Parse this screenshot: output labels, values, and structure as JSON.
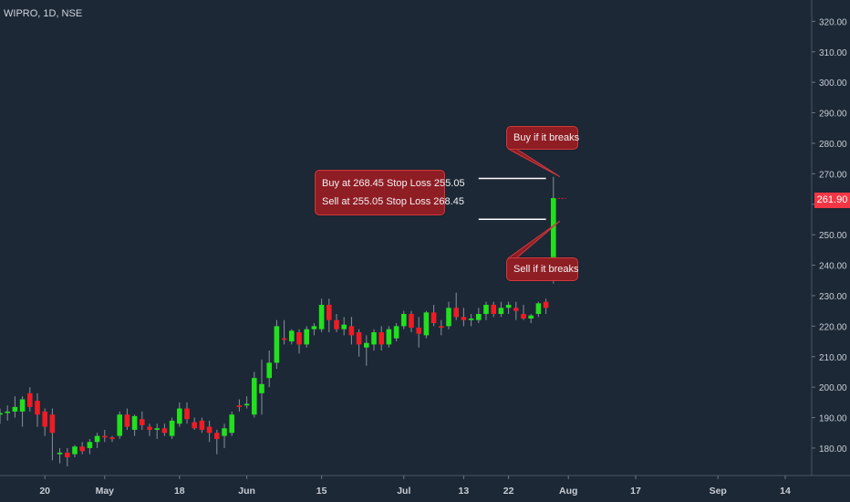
{
  "header": {
    "ticker": "WIPRO, 1D, NSE"
  },
  "annotations": {
    "entry_box": {
      "line1": "Buy at 268.45 Stop Loss 255.05",
      "line2": "Sell at 255.05 Stop Loss 268.45"
    },
    "buy_label": "Buy if it breaks",
    "sell_label": "Sell if it breaks"
  },
  "colors": {
    "up": "#22e01e",
    "down": "#ee1c24",
    "background": "#1c2836",
    "callout": "#8f1d24"
  },
  "chart_data": {
    "type": "candlestick",
    "title": "",
    "xlabel": "",
    "ylabel": "",
    "ylim": [
      171,
      327
    ],
    "price_ticks": [
      "180.00",
      "190.00",
      "200.00",
      "210.00",
      "220.00",
      "230.00",
      "240.00",
      "250.00",
      "260.00",
      "270.00",
      "280.00",
      "290.00",
      "300.00",
      "310.00",
      "320.00"
    ],
    "time_ticks": [
      {
        "label": "20",
        "bar": 6
      },
      {
        "label": "May",
        "bar": 14
      },
      {
        "label": "18",
        "bar": 24
      },
      {
        "label": "Jun",
        "bar": 33
      },
      {
        "label": "15",
        "bar": 43
      },
      {
        "label": "Jul",
        "bar": 54
      },
      {
        "label": "13",
        "bar": 62
      },
      {
        "label": "22",
        "bar": 68
      },
      {
        "label": "Aug",
        "bar": 76
      },
      {
        "label": "17",
        "bar": 85
      },
      {
        "label": "Sep",
        "bar": 96
      },
      {
        "label": "14",
        "bar": 105
      }
    ],
    "last_price": "261.90",
    "levels": [
      {
        "name": "buy-level",
        "price": 268.45,
        "from_bar": 64,
        "to_bar": 73
      },
      {
        "name": "sell-level",
        "price": 255.05,
        "from_bar": 64,
        "to_bar": 73
      }
    ],
    "candles": [
      [
        191,
        193,
        188,
        191.5
      ],
      [
        191.5,
        194,
        189,
        192
      ],
      [
        192,
        197,
        190,
        193.5
      ],
      [
        192,
        197,
        187,
        196
      ],
      [
        198,
        200,
        192,
        193.5
      ],
      [
        195.5,
        198,
        187,
        191
      ],
      [
        192,
        193,
        184,
        187
      ],
      [
        191,
        193,
        176,
        185
      ],
      [
        178,
        180,
        175,
        178.5
      ],
      [
        178.5,
        180,
        174,
        177
      ],
      [
        178,
        181,
        177,
        180.5
      ],
      [
        180.5,
        182,
        178,
        179
      ],
      [
        180,
        183,
        178,
        182
      ],
      [
        182,
        185,
        180,
        184
      ],
      [
        184,
        186,
        182,
        183.5
      ],
      [
        183.5,
        184,
        182,
        183
      ],
      [
        184,
        192,
        183,
        191
      ],
      [
        191,
        193,
        186,
        187
      ],
      [
        186,
        191,
        184,
        190.5
      ],
      [
        189.5,
        192,
        186,
        187.5
      ],
      [
        187,
        188,
        184,
        186
      ],
      [
        186,
        188,
        183,
        186.5
      ],
      [
        186.5,
        188,
        184,
        185
      ],
      [
        184,
        190,
        183,
        189
      ],
      [
        188,
        195,
        187,
        193
      ],
      [
        193,
        195,
        188,
        189.5
      ],
      [
        188.5,
        190,
        186,
        186.5
      ],
      [
        189,
        190,
        185,
        186
      ],
      [
        187,
        189,
        182,
        185
      ],
      [
        185,
        186,
        178,
        183
      ],
      [
        184,
        188,
        180,
        186.5
      ],
      [
        185,
        192,
        184,
        191
      ],
      [
        194,
        196,
        192,
        193.5
      ],
      [
        194,
        197,
        193,
        194.5
      ],
      [
        191,
        205,
        190,
        203
      ],
      [
        198,
        209,
        191,
        201
      ],
      [
        203,
        212,
        200,
        208
      ],
      [
        208,
        222,
        206,
        220
      ],
      [
        216,
        222,
        214,
        215.5
      ],
      [
        215,
        219,
        214,
        218.5
      ],
      [
        218,
        219,
        211,
        214
      ],
      [
        214,
        220,
        213,
        219
      ],
      [
        219,
        221,
        217,
        220
      ],
      [
        219,
        229,
        218,
        227
      ],
      [
        227,
        229,
        218,
        222
      ],
      [
        222,
        224,
        218,
        219
      ],
      [
        219,
        223,
        217,
        220.5
      ],
      [
        220,
        223,
        214,
        217
      ],
      [
        218,
        219,
        210,
        214
      ],
      [
        213,
        217,
        207,
        214.5
      ],
      [
        214,
        219,
        212,
        218
      ],
      [
        218,
        220,
        212,
        214
      ],
      [
        214,
        220,
        213,
        219
      ],
      [
        216,
        221,
        215,
        220
      ],
      [
        220,
        225,
        219,
        224
      ],
      [
        224,
        225,
        218,
        219.5
      ],
      [
        219.5,
        223,
        213,
        217.5
      ],
      [
        217,
        225,
        216,
        224.5
      ],
      [
        224.5,
        227,
        220,
        221
      ],
      [
        220,
        222,
        217,
        219.5
      ],
      [
        220,
        228,
        219,
        226
      ],
      [
        226,
        231,
        222,
        223
      ],
      [
        223,
        226,
        220,
        222
      ],
      [
        222,
        224,
        220,
        222.5
      ],
      [
        222,
        226,
        221,
        224
      ],
      [
        224,
        228,
        222,
        227
      ],
      [
        227,
        228,
        223,
        224
      ],
      [
        224,
        228,
        223,
        226
      ],
      [
        226,
        228,
        224,
        227
      ],
      [
        226,
        228,
        222,
        225
      ],
      [
        224,
        227,
        222,
        222.5
      ],
      [
        222.5,
        224,
        221,
        223.5
      ],
      [
        224,
        228,
        223,
        227.5
      ],
      [
        228,
        229,
        224,
        226
      ],
      [
        236,
        269,
        234,
        262
      ]
    ]
  }
}
